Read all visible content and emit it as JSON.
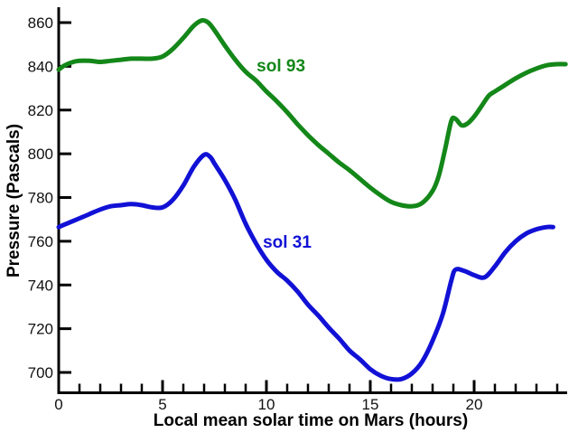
{
  "page": {
    "background": "#ffffff"
  },
  "chart_data": {
    "type": "line",
    "title": "",
    "xlabel": "Local mean solar time on Mars (hours)",
    "ylabel": "Pressure (Pascals)",
    "xlim": [
      0,
      24.5
    ],
    "ylim": [
      695,
      865
    ],
    "grid": false,
    "legend_position": "inline-annotations",
    "axis_color": "#000000",
    "tick_label_color": "#111111",
    "x_ticks_major": [
      0,
      5,
      10,
      15,
      20
    ],
    "x_ticks_minor_every": 1,
    "x_ticks_minor_max": 24,
    "y_ticks": [
      860,
      840,
      820,
      800,
      780,
      760,
      740,
      720,
      700
    ],
    "series": [
      {
        "name": "sol 93",
        "color": "#148719",
        "label_pos": [
          10.7,
          840.5
        ],
        "points": [
          [
            0,
            838.5
          ],
          [
            0.3,
            840.5
          ],
          [
            0.7,
            842
          ],
          [
            1,
            842.5
          ],
          [
            1.5,
            842.5
          ],
          [
            2,
            842
          ],
          [
            2.5,
            842.5
          ],
          [
            3,
            843
          ],
          [
            3.5,
            843.5
          ],
          [
            4,
            843.5
          ],
          [
            4.5,
            843.5
          ],
          [
            5,
            844.5
          ],
          [
            5.5,
            848
          ],
          [
            6,
            853
          ],
          [
            6.5,
            858.5
          ],
          [
            6.9,
            861
          ],
          [
            7.2,
            860
          ],
          [
            7.5,
            856.5
          ],
          [
            8,
            849.5
          ],
          [
            8.5,
            843
          ],
          [
            9,
            837.5
          ],
          [
            9.5,
            833.5
          ],
          [
            10,
            828.5
          ],
          [
            10.5,
            824
          ],
          [
            11,
            819
          ],
          [
            11.5,
            813.5
          ],
          [
            12,
            808.5
          ],
          [
            12.5,
            804
          ],
          [
            13,
            800
          ],
          [
            13.5,
            796
          ],
          [
            14,
            792.5
          ],
          [
            14.5,
            788.5
          ],
          [
            15,
            784.5
          ],
          [
            15.5,
            781
          ],
          [
            16,
            778
          ],
          [
            16.5,
            776.5
          ],
          [
            17,
            776
          ],
          [
            17.5,
            777.5
          ],
          [
            18,
            783
          ],
          [
            18.3,
            790
          ],
          [
            18.6,
            802
          ],
          [
            18.9,
            815
          ],
          [
            19.1,
            816
          ],
          [
            19.4,
            813
          ],
          [
            19.7,
            814
          ],
          [
            20,
            817
          ],
          [
            20.3,
            821
          ],
          [
            20.7,
            826.5
          ],
          [
            21,
            828.5
          ],
          [
            21.5,
            831.5
          ],
          [
            22,
            834.5
          ],
          [
            22.5,
            837
          ],
          [
            23,
            839
          ],
          [
            23.5,
            840.5
          ],
          [
            24,
            841
          ],
          [
            24.4,
            841
          ]
        ]
      },
      {
        "name": "sol 31",
        "color": "#1111d6",
        "label_pos": [
          11.0,
          760
        ],
        "points": [
          [
            0,
            766.5
          ],
          [
            0.5,
            768.5
          ],
          [
            1,
            770.5
          ],
          [
            1.5,
            772.5
          ],
          [
            2,
            774.5
          ],
          [
            2.5,
            776
          ],
          [
            3,
            776.5
          ],
          [
            3.5,
            777
          ],
          [
            4,
            776.5
          ],
          [
            4.5,
            775.5
          ],
          [
            5,
            775.5
          ],
          [
            5.5,
            779
          ],
          [
            6,
            785.5
          ],
          [
            6.5,
            794
          ],
          [
            7,
            799.5
          ],
          [
            7.3,
            798.5
          ],
          [
            7.5,
            795.5
          ],
          [
            8,
            788
          ],
          [
            8.5,
            779
          ],
          [
            9,
            768
          ],
          [
            9.5,
            759
          ],
          [
            10,
            751.5
          ],
          [
            10.5,
            746
          ],
          [
            11,
            742
          ],
          [
            11.5,
            737
          ],
          [
            12,
            731
          ],
          [
            12.5,
            726
          ],
          [
            13,
            720.5
          ],
          [
            13.5,
            715.5
          ],
          [
            14,
            710
          ],
          [
            14.5,
            706
          ],
          [
            15,
            701.5
          ],
          [
            15.5,
            698.5
          ],
          [
            16,
            697
          ],
          [
            16.5,
            697
          ],
          [
            17,
            699.5
          ],
          [
            17.5,
            705
          ],
          [
            18,
            714.5
          ],
          [
            18.5,
            727
          ],
          [
            18.9,
            742
          ],
          [
            19.1,
            747
          ],
          [
            19.5,
            746.5
          ],
          [
            20,
            744.5
          ],
          [
            20.5,
            743.5
          ],
          [
            21,
            748.5
          ],
          [
            21.5,
            755
          ],
          [
            22,
            760
          ],
          [
            22.5,
            763.5
          ],
          [
            23,
            765.5
          ],
          [
            23.5,
            766.5
          ],
          [
            23.8,
            766.5
          ]
        ]
      }
    ]
  }
}
